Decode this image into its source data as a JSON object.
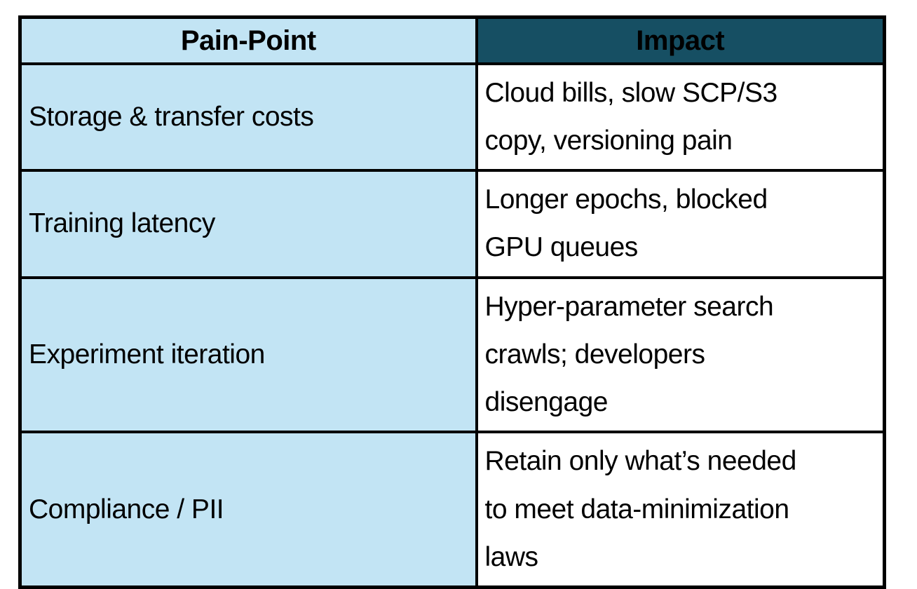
{
  "table": {
    "columns": {
      "pain_point_header": "Pain-Point",
      "impact_header": "Impact"
    },
    "rows": [
      {
        "pain_point": "Storage & transfer costs",
        "impact": "Cloud bills, slow SCP/S3\ncopy, versioning pain"
      },
      {
        "pain_point": "Training latency",
        "impact": "Longer epochs, blocked\nGPU queues"
      },
      {
        "pain_point": "Experiment iteration",
        "impact": "Hyper-parameter search\ncrawls; developers\ndisengage"
      },
      {
        "pain_point": "Compliance / PII",
        "impact": "Retain only what’s needed\nto meet data-minimization\nlaws"
      }
    ],
    "colors": {
      "pain_column_bg": "#c2e4f4",
      "impact_header_bg": "#164f63",
      "impact_cell_bg": "#ffffff",
      "border": "#000000",
      "text": "#000000"
    }
  }
}
